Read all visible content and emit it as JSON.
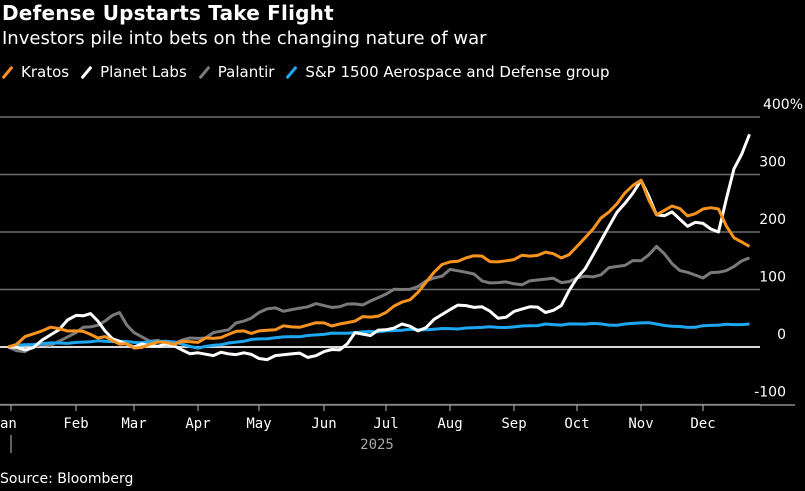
{
  "header": {
    "title": "Defense Upstarts Take Flight",
    "subtitle": "Investors pile into bets on the changing nature of war"
  },
  "legend": [
    {
      "label": "Kratos",
      "color": "#f7931e"
    },
    {
      "label": "Planet Labs",
      "color": "#ffffff"
    },
    {
      "label": "Palantir",
      "color": "#7a7a7a"
    },
    {
      "label": "S&P 1500 Aerospace and Defense group",
      "color": "#1ea7f0"
    }
  ],
  "footer": {
    "source": "Source: Bloomberg"
  },
  "chart_data": {
    "type": "line",
    "title": "Defense Upstarts Take Flight",
    "subtitle": "Investors pile into bets on the changing nature of war",
    "xlabel": "2025",
    "ylabel": "",
    "ylim": [
      -100,
      400
    ],
    "yticks": [
      -100,
      0,
      100,
      200,
      300,
      400
    ],
    "ytick_labels": [
      "-100",
      "0",
      "100",
      "200",
      "300",
      "400%"
    ],
    "xtick_labels": [
      "Jan",
      "Feb",
      "Mar",
      "Apr",
      "May",
      "Jun",
      "Jul",
      "Aug",
      "Sep",
      "Oct",
      "Nov",
      "Dec"
    ],
    "xlim_months": [
      0,
      12
    ],
    "grid": true,
    "legend_position": "top-left",
    "x": [
      0,
      0.25,
      0.5,
      0.75,
      1.0,
      1.25,
      1.5,
      1.75,
      2.0,
      2.25,
      2.5,
      2.75,
      3.0,
      3.25,
      3.5,
      3.75,
      4.0,
      4.25,
      4.5,
      4.75,
      5.0,
      5.25,
      5.5,
      5.75,
      6.0,
      6.25,
      6.5,
      6.75,
      7.0,
      7.25,
      7.5,
      7.75,
      8.0,
      8.25,
      8.5,
      8.75,
      9.0,
      9.25,
      9.5,
      9.75,
      10.0,
      10.25,
      10.5,
      10.75,
      11.0,
      11.25,
      11.5,
      11.75
    ],
    "series": [
      {
        "name": "Kratos",
        "color": "#f7931e",
        "values": [
          0,
          18,
          28,
          32,
          28,
          22,
          18,
          5,
          -2,
          5,
          8,
          10,
          8,
          15,
          22,
          28,
          28,
          30,
          35,
          38,
          42,
          40,
          45,
          52,
          60,
          78,
          95,
          130,
          148,
          155,
          158,
          148,
          152,
          158,
          165,
          155,
          175,
          205,
          235,
          268,
          290,
          230,
          245,
          228,
          240,
          240,
          190,
          175
        ]
      },
      {
        "name": "Planet Labs",
        "color": "#ffffff",
        "values": [
          0,
          -5,
          12,
          30,
          55,
          58,
          28,
          10,
          0,
          2,
          5,
          -5,
          -10,
          -15,
          -12,
          -10,
          -20,
          -15,
          -12,
          -18,
          -8,
          -5,
          25,
          20,
          30,
          40,
          28,
          48,
          65,
          72,
          70,
          50,
          62,
          70,
          60,
          72,
          120,
          160,
          210,
          250,
          290,
          230,
          235,
          210,
          215,
          200,
          310,
          370
        ]
      },
      {
        "name": "Palantir",
        "color": "#7a7a7a",
        "values": [
          0,
          -8,
          5,
          10,
          25,
          35,
          45,
          60,
          25,
          10,
          5,
          12,
          15,
          25,
          30,
          45,
          60,
          68,
          65,
          70,
          72,
          70,
          75,
          80,
          92,
          100,
          105,
          120,
          135,
          130,
          115,
          112,
          110,
          115,
          118,
          112,
          120,
          122,
          138,
          142,
          150,
          175,
          145,
          130,
          120,
          130,
          140,
          155
        ]
      },
      {
        "name": "S&P 1500 Aerospace and Defense group",
        "color": "#1ea7f0",
        "values": [
          0,
          4,
          6,
          7,
          8,
          9,
          10,
          10,
          8,
          9,
          10,
          5,
          -2,
          3,
          7,
          10,
          14,
          16,
          18,
          20,
          22,
          24,
          25,
          27,
          28,
          29,
          30,
          31,
          32,
          33,
          34,
          34,
          35,
          37,
          40,
          38,
          40,
          41,
          38,
          40,
          42,
          40,
          36,
          34,
          37,
          38,
          39,
          40
        ]
      }
    ]
  }
}
